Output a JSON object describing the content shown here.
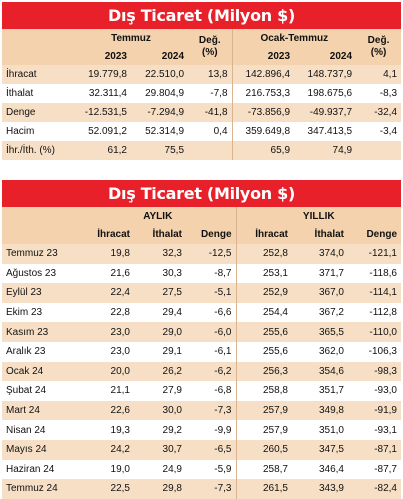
{
  "table1": {
    "title": "Dış Ticaret (Milyon $)",
    "group_left": "Temmuz",
    "group_right": "Ocak-Temmuz",
    "change_label": "Değ. (%)",
    "years": [
      "2023",
      "2024"
    ],
    "rows": [
      {
        "label": "İhracat",
        "v": [
          "19.779,8",
          "22.510,0",
          "13,8",
          "142.896,4",
          "148.737,9",
          "4,1"
        ]
      },
      {
        "label": "İthalat",
        "v": [
          "32.311,4",
          "29.804,9",
          "-7,8",
          "216.753,3",
          "198.675,6",
          "-8,3"
        ]
      },
      {
        "label": "Denge",
        "v": [
          "-12.531,5",
          "-7.294,9",
          "-41,8",
          "-73.856,9",
          "-49.937,7",
          "-32,4"
        ]
      },
      {
        "label": "Hacim",
        "v": [
          "52.091,2",
          "52.314,9",
          "0,4",
          "359.649,8",
          "347.413,5",
          "-3,4"
        ]
      },
      {
        "label": "İhr./İth. (%)",
        "v": [
          "61,2",
          "75,5",
          "",
          "65,9",
          "74,9",
          ""
        ]
      }
    ]
  },
  "table2": {
    "title": "Dış Ticaret (Milyon $)",
    "group_left": "AYLIK",
    "group_right": "YILLIK",
    "cols": [
      "İhracat",
      "İthalat",
      "Denge",
      "İhracat",
      "İthalat",
      "Denge"
    ],
    "rows": [
      {
        "label": "Temmuz 23",
        "v": [
          "19,8",
          "32,3",
          "-12,5",
          "252,8",
          "374,0",
          "-121,1"
        ]
      },
      {
        "label": "Ağustos 23",
        "v": [
          "21,6",
          "30,3",
          "-8,7",
          "253,1",
          "371,7",
          "-118,6"
        ]
      },
      {
        "label": "Eylül 23",
        "v": [
          "22,4",
          "27,5",
          "-5,1",
          "252,9",
          "367,0",
          "-114,1"
        ]
      },
      {
        "label": "Ekim 23",
        "v": [
          "22,8",
          "29,4",
          "-6,6",
          "254,4",
          "367,2",
          "-112,8"
        ]
      },
      {
        "label": "Kasım 23",
        "v": [
          "23,0",
          "29,0",
          "-6,0",
          "255,6",
          "365,5",
          "-110,0"
        ]
      },
      {
        "label": "Aralık 23",
        "v": [
          "23,0",
          "29,1",
          "-6,1",
          "255,6",
          "362,0",
          "-106,3"
        ]
      },
      {
        "label": "Ocak 24",
        "v": [
          "20,0",
          "26,2",
          "-6,2",
          "256,3",
          "354,6",
          "-98,3"
        ]
      },
      {
        "label": "Şubat 24",
        "v": [
          "21,1",
          "27,9",
          "-6,8",
          "258,8",
          "351,7",
          "-93,0"
        ]
      },
      {
        "label": "Mart 24",
        "v": [
          "22,6",
          "30,0",
          "-7,3",
          "257,9",
          "349,8",
          "-91,9"
        ]
      },
      {
        "label": "Nisan 24",
        "v": [
          "19,3",
          "29,2",
          "-9,9",
          "257,9",
          "351,0",
          "-93,1"
        ]
      },
      {
        "label": "Mayıs 24",
        "v": [
          "24,2",
          "30,7",
          "-6,5",
          "260,5",
          "347,5",
          "-87,1"
        ]
      },
      {
        "label": "Haziran 24",
        "v": [
          "19,0",
          "24,9",
          "-5,9",
          "258,7",
          "346,4",
          "-87,7"
        ]
      },
      {
        "label": "Temmuz 24",
        "v": [
          "22,5",
          "29,8",
          "-7,3",
          "261,5",
          "343,9",
          "-82,4"
        ]
      }
    ]
  }
}
